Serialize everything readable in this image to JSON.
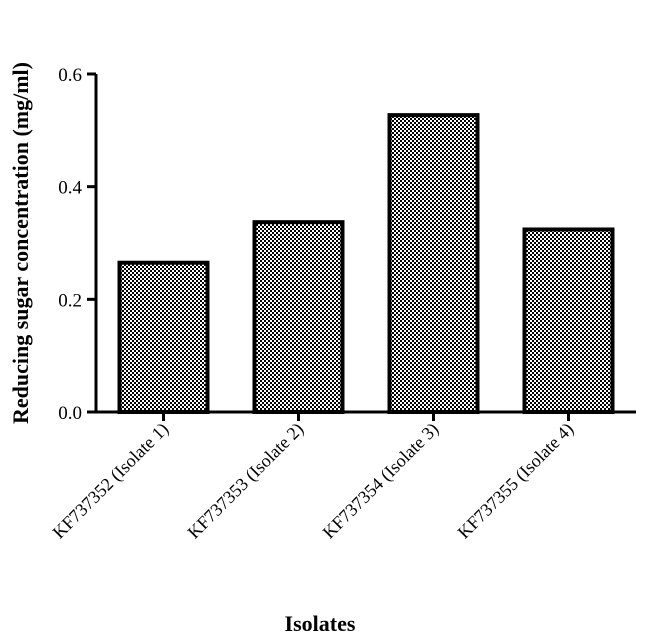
{
  "chart_data": {
    "type": "bar",
    "categories": [
      "KF737352 (Isolate 1)",
      "KF737353 (Isolate 2)",
      "KF737354 (Isolate 3)",
      "KF737355 (Isolate 4)"
    ],
    "values": [
      0.265,
      0.337,
      0.527,
      0.324
    ],
    "xlabel": "Isolates",
    "ylabel": "Reducing sugar concentration (mg/ml)",
    "ylim": [
      0,
      0.6
    ],
    "yticks": [
      "0.0",
      "0.2",
      "0.4",
      "0.6"
    ],
    "grid": false,
    "bar_fill": "checkerboard",
    "bar_edge_color": "#000000"
  }
}
